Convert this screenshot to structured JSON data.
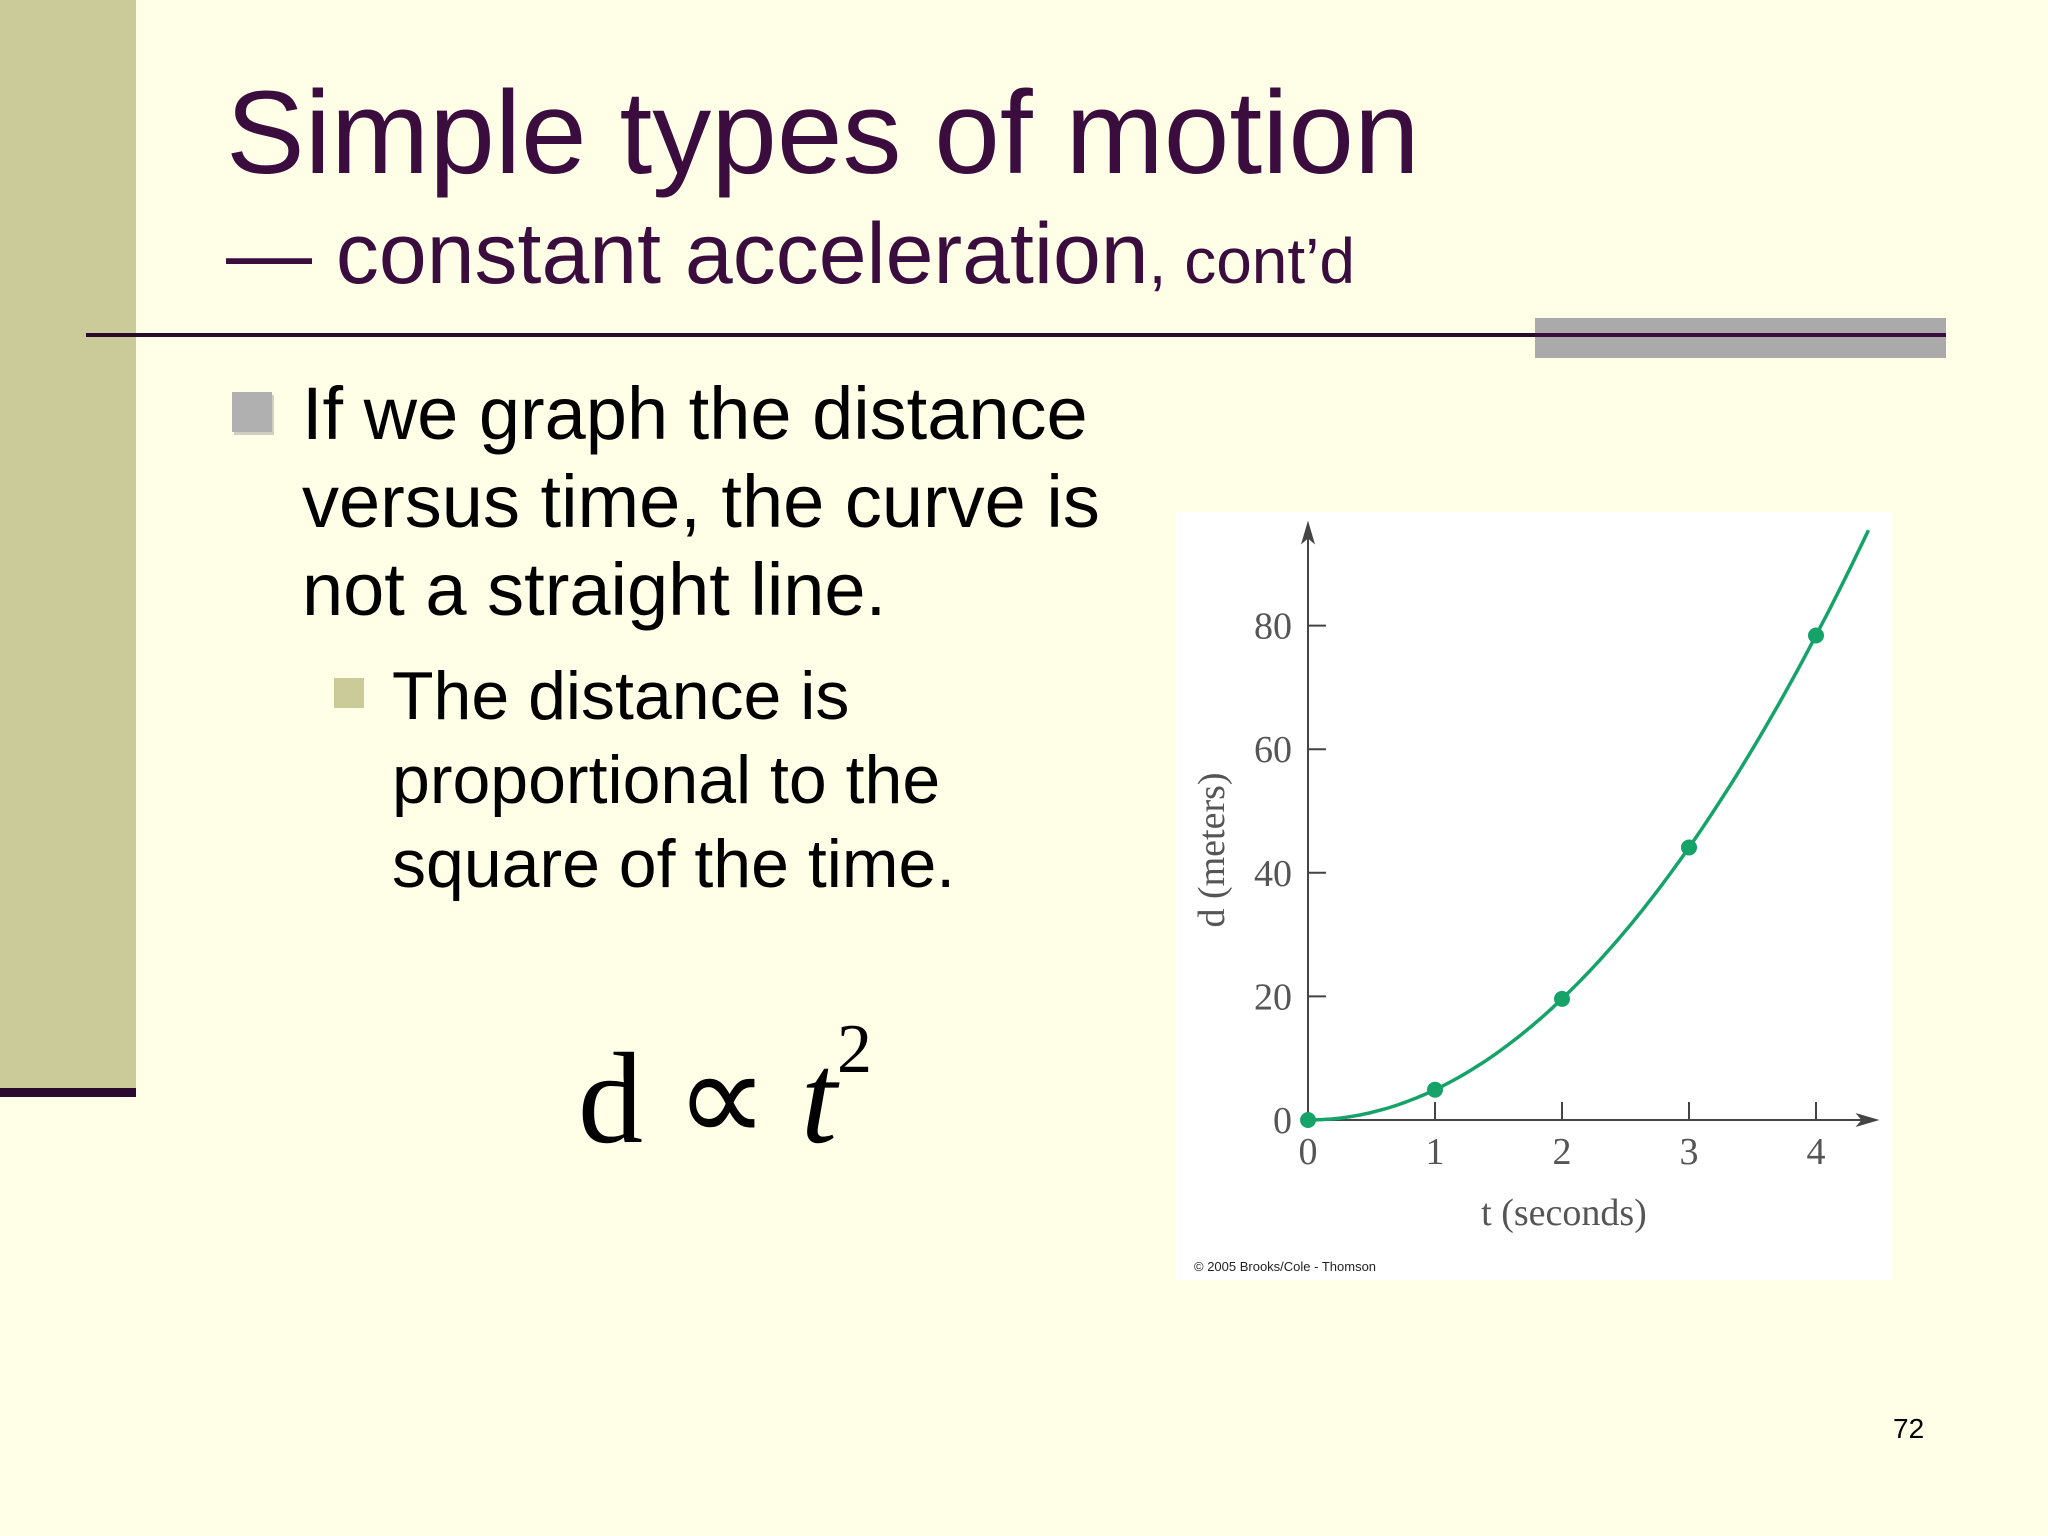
{
  "slide": {
    "title": "Simple types of motion",
    "subtitle_main": "— constant acceleration",
    "subtitle_suffix": ", cont’d",
    "bullets": [
      {
        "text": "If we graph the distance versus time, the curve is not a straight line."
      },
      {
        "text": "The distance is proportional to the square of the time."
      }
    ],
    "formula": {
      "lhs": "d",
      "op": "∝",
      "var": "t",
      "exp": "2"
    },
    "credit": "© 2005 Brooks/Cole - Thomson",
    "page_number": "72"
  },
  "colors": {
    "background": "#FFFEE6",
    "sidebar": "#CBCB99",
    "title": "#3A0D3E",
    "curve": "#16A36A"
  },
  "chart_data": {
    "type": "line",
    "x": [
      0,
      1,
      2,
      3,
      4
    ],
    "series": [
      {
        "values": [
          0,
          4.9,
          19.6,
          44.1,
          78.4
        ]
      }
    ],
    "xlabel": "t (seconds)",
    "ylabel": "d (meters)",
    "xticks": [
      0,
      1,
      2,
      3,
      4
    ],
    "yticks": [
      0,
      20,
      40,
      60,
      80
    ],
    "xlim": [
      0,
      4.5
    ],
    "ylim": [
      0,
      97
    ],
    "curve": "d = 4.9 t²",
    "markers": true,
    "grid": false
  }
}
